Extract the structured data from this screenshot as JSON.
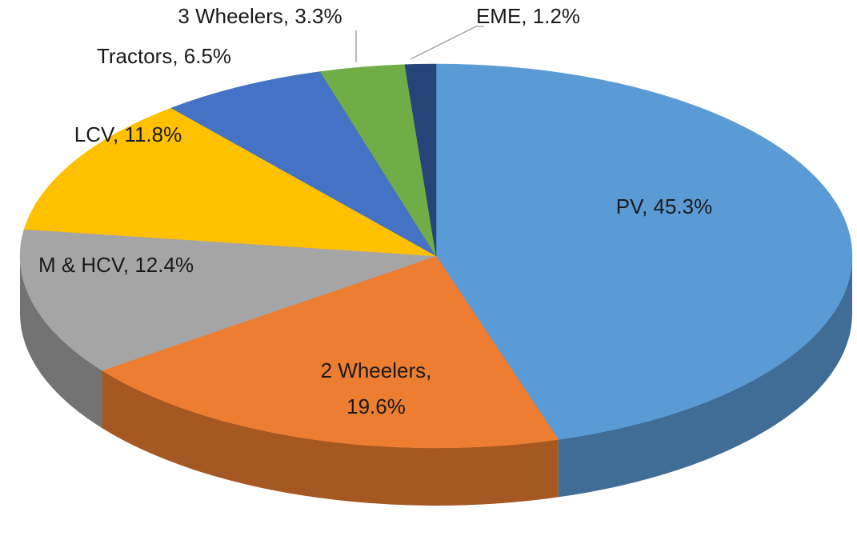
{
  "chart_data": {
    "type": "pie",
    "value_labels": [
      "PV, 45.3%",
      "2 Wheelers, 19.6%",
      "M & HCV, 12.4%",
      "LCV, 11.8%",
      "Tractors, 6.5%",
      "3 Wheelers, 3.3%",
      "EME, 1.2%"
    ],
    "values": [
      45.3,
      19.6,
      12.4,
      11.8,
      6.5,
      3.3,
      1.2
    ],
    "colors": [
      "#5b9bd5",
      "#ed7d31",
      "#a5a5a5",
      "#ffc000",
      "#4472c4",
      "#70ad47",
      "#264478"
    ]
  }
}
